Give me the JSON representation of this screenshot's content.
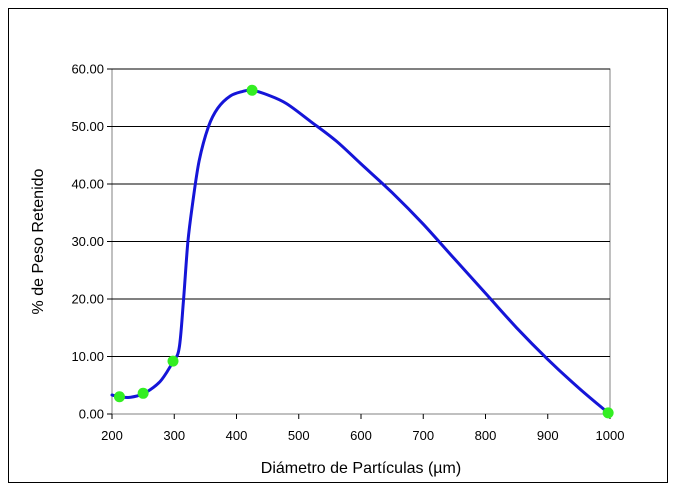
{
  "chart_data": {
    "type": "line",
    "title": "",
    "xlabel": "Diámetro de Partículas (µm)",
    "ylabel": "% de Peso Retenido",
    "xlim": [
      200,
      1000
    ],
    "ylim": [
      0,
      60
    ],
    "x_ticks": [
      200,
      300,
      400,
      500,
      600,
      700,
      800,
      900,
      1000
    ],
    "y_ticks": [
      0,
      10,
      20,
      30,
      40,
      50,
      60
    ],
    "y_tick_labels": [
      "0.00",
      "10.00",
      "20.00",
      "30.00",
      "40.00",
      "50.00",
      "60.00"
    ],
    "grid": "horizontal",
    "legend": "none",
    "line_color": "#1515d8",
    "marker_color": "#33ee22",
    "curve": [
      {
        "x": 200,
        "y": 3.3
      },
      {
        "x": 212,
        "y": 3.0
      },
      {
        "x": 230,
        "y": 2.9
      },
      {
        "x": 250,
        "y": 3.5
      },
      {
        "x": 265,
        "y": 4.5
      },
      {
        "x": 280,
        "y": 6.0
      },
      {
        "x": 298,
        "y": 9.1
      },
      {
        "x": 308,
        "y": 11.5
      },
      {
        "x": 315,
        "y": 20.0
      },
      {
        "x": 322,
        "y": 30.0
      },
      {
        "x": 330,
        "y": 37.0
      },
      {
        "x": 340,
        "y": 44.0
      },
      {
        "x": 355,
        "y": 50.0
      },
      {
        "x": 370,
        "y": 53.2
      },
      {
        "x": 390,
        "y": 55.3
      },
      {
        "x": 410,
        "y": 56.1
      },
      {
        "x": 425,
        "y": 56.3
      },
      {
        "x": 450,
        "y": 55.5
      },
      {
        "x": 480,
        "y": 54.0
      },
      {
        "x": 520,
        "y": 50.8
      },
      {
        "x": 560,
        "y": 47.5
      },
      {
        "x": 600,
        "y": 43.5
      },
      {
        "x": 650,
        "y": 38.5
      },
      {
        "x": 700,
        "y": 33.0
      },
      {
        "x": 750,
        "y": 27.0
      },
      {
        "x": 800,
        "y": 21.0
      },
      {
        "x": 850,
        "y": 15.0
      },
      {
        "x": 900,
        "y": 9.5
      },
      {
        "x": 950,
        "y": 4.5
      },
      {
        "x": 997,
        "y": 0.2
      }
    ],
    "points": [
      {
        "x": 212,
        "y": 3.0
      },
      {
        "x": 250,
        "y": 3.6
      },
      {
        "x": 298,
        "y": 9.2
      },
      {
        "x": 425,
        "y": 56.3
      },
      {
        "x": 997,
        "y": 0.2
      }
    ]
  }
}
